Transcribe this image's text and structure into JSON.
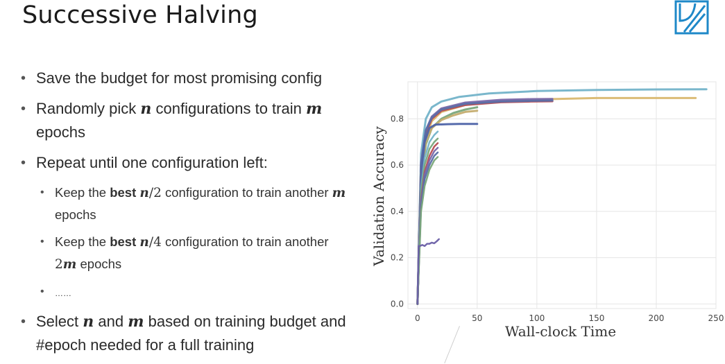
{
  "slide": {
    "title": "Successive Halving"
  },
  "logo": {
    "icon": "brand-logo-icon",
    "color": "#1e88c8"
  },
  "bullets": {
    "b1": {
      "text": "Save the budget for most promising config"
    },
    "b2": {
      "pre": "Randomly pick ",
      "var1": "n",
      "mid": " configurations to train ",
      "var2": "m",
      "post": " epochs"
    },
    "b3": {
      "text": "Repeat until one configuration left:"
    },
    "s1": {
      "pre": "Keep the ",
      "bold": "best",
      "var": "n",
      "div": "/2",
      "mid": " configuration to train another ",
      "var2": "m",
      "post": " epochs"
    },
    "s2": {
      "pre": "Keep the ",
      "bold": "best",
      "var": "n",
      "div": "/4",
      "mid": " configuration to train another ",
      "coef": "2",
      "var2": "m",
      "post": " epochs"
    },
    "s3": {
      "text": "……"
    },
    "b4": {
      "pre": "Select ",
      "var1": "n",
      "mid1": " and ",
      "var2": "m",
      "post": " based on training budget and #epoch needed for a full training"
    }
  },
  "chart_data": {
    "type": "line",
    "xlabel": "Wall-clock Time",
    "ylabel": "Validation Accuracy",
    "xlim": [
      -8,
      250
    ],
    "ylim": [
      -0.02,
      0.96
    ],
    "xticks": [
      0,
      50,
      100,
      150,
      200,
      250
    ],
    "yticks": [
      0.0,
      0.2,
      0.4,
      0.6,
      0.8
    ],
    "ytick_labels": [
      "0.0",
      "0.2",
      "0.4",
      "0.6",
      "0.8"
    ],
    "grid": true,
    "series": [
      {
        "color": "#73b3c9",
        "width": 3,
        "x": [
          0,
          3,
          7,
          12,
          20,
          35,
          60,
          100,
          150,
          200,
          242
        ],
        "y": [
          0.0,
          0.65,
          0.8,
          0.85,
          0.875,
          0.895,
          0.91,
          0.92,
          0.925,
          0.927,
          0.928
        ]
      },
      {
        "color": "#d9b86f",
        "width": 3,
        "x": [
          0,
          3,
          7,
          12,
          20,
          40,
          70,
          110,
          150,
          200,
          233
        ],
        "y": [
          0.0,
          0.58,
          0.72,
          0.79,
          0.83,
          0.86,
          0.875,
          0.885,
          0.89,
          0.89,
          0.89
        ]
      },
      {
        "color": "#b84c52",
        "width": 3,
        "x": [
          0,
          3,
          7,
          12,
          20,
          40,
          70,
          95,
          113
        ],
        "y": [
          0.0,
          0.6,
          0.74,
          0.8,
          0.835,
          0.86,
          0.872,
          0.875,
          0.876
        ]
      },
      {
        "color": "#7a67a9",
        "width": 3,
        "x": [
          0,
          3,
          7,
          12,
          20,
          40,
          70,
          95,
          113
        ],
        "y": [
          0.0,
          0.61,
          0.75,
          0.81,
          0.845,
          0.87,
          0.882,
          0.885,
          0.886
        ]
      },
      {
        "color": "#5a6ea8",
        "width": 3,
        "x": [
          0,
          3,
          7,
          12,
          20,
          40,
          70,
          95,
          113
        ],
        "y": [
          0.0,
          0.6,
          0.75,
          0.805,
          0.84,
          0.865,
          0.875,
          0.878,
          0.879
        ]
      },
      {
        "color": "#7aa67a",
        "width": 3,
        "x": [
          0,
          3,
          7,
          12,
          20,
          30,
          40,
          50
        ],
        "y": [
          0.0,
          0.55,
          0.69,
          0.76,
          0.8,
          0.825,
          0.84,
          0.85
        ]
      },
      {
        "color": "#c4ac6e",
        "width": 3,
        "x": [
          0,
          3,
          7,
          12,
          20,
          30,
          40,
          50
        ],
        "y": [
          0.0,
          0.56,
          0.7,
          0.76,
          0.795,
          0.815,
          0.83,
          0.835
        ]
      },
      {
        "color": "#4d63a8",
        "width": 3,
        "x": [
          0,
          3,
          6,
          10,
          15,
          25,
          35,
          50
        ],
        "y": [
          0.0,
          0.55,
          0.7,
          0.76,
          0.775,
          0.777,
          0.778,
          0.778
        ]
      },
      {
        "color": "#73b3c9",
        "width": 2.5,
        "x": [
          0,
          3,
          6,
          10,
          14,
          17
        ],
        "y": [
          0.0,
          0.5,
          0.63,
          0.7,
          0.73,
          0.745
        ]
      },
      {
        "color": "#7aa67a",
        "width": 2.5,
        "x": [
          0,
          3,
          6,
          10,
          14,
          17
        ],
        "y": [
          0.0,
          0.48,
          0.6,
          0.67,
          0.7,
          0.715
        ]
      },
      {
        "color": "#b84c52",
        "width": 2.5,
        "x": [
          0,
          3,
          6,
          10,
          14,
          17
        ],
        "y": [
          0.0,
          0.45,
          0.57,
          0.64,
          0.68,
          0.695
        ]
      },
      {
        "color": "#7a67a9",
        "width": 2.5,
        "x": [
          0,
          3,
          6,
          10,
          14,
          17
        ],
        "y": [
          0.0,
          0.44,
          0.56,
          0.62,
          0.66,
          0.675
        ]
      },
      {
        "color": "#5a6ea8",
        "width": 2.5,
        "x": [
          0,
          3,
          6,
          10,
          14,
          17
        ],
        "y": [
          0.0,
          0.42,
          0.54,
          0.6,
          0.64,
          0.655
        ]
      },
      {
        "color": "#7aa67a",
        "width": 2.5,
        "x": [
          0,
          3,
          6,
          10,
          14,
          17
        ],
        "y": [
          0.0,
          0.4,
          0.51,
          0.58,
          0.62,
          0.635
        ]
      },
      {
        "color": "#6a5fa6",
        "width": 2.5,
        "x": [
          0,
          1,
          2,
          4,
          6,
          8,
          10,
          12,
          14,
          16,
          18
        ],
        "y": [
          0.0,
          0.25,
          0.25,
          0.255,
          0.25,
          0.26,
          0.26,
          0.265,
          0.262,
          0.27,
          0.28
        ]
      }
    ]
  }
}
